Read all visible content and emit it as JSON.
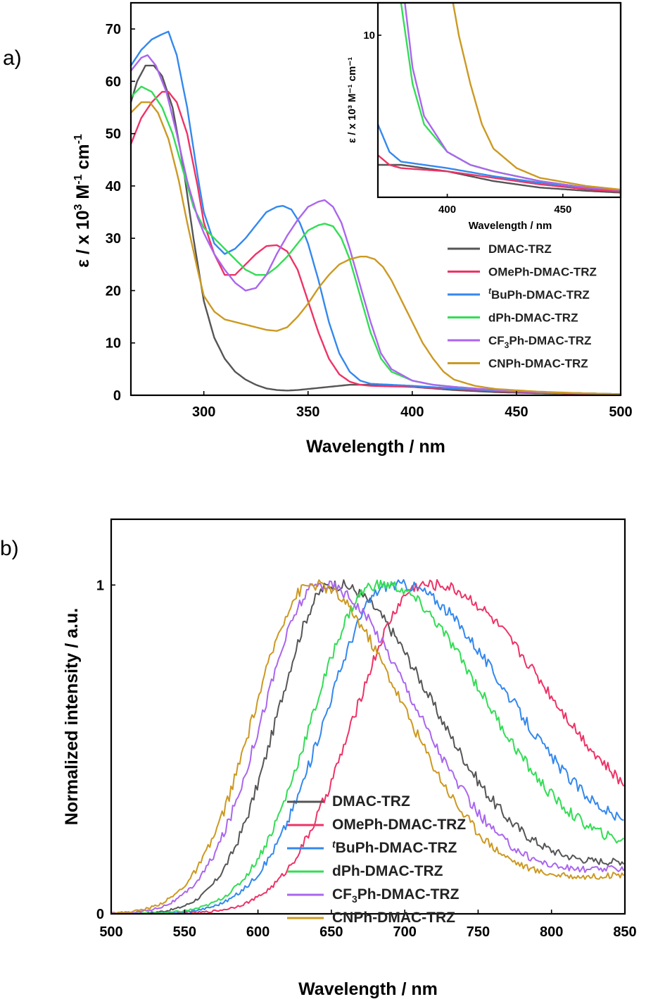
{
  "chart_data": [
    {
      "panel": "a)",
      "type": "line",
      "xlabel": "Wavelength / nm",
      "ylabel": "ε / x 10³ M⁻¹ cm⁻¹",
      "xlim": [
        265,
        500
      ],
      "ylim": [
        0,
        75
      ],
      "xticks": [
        300,
        350,
        400,
        450,
        500
      ],
      "yticks": [
        0,
        10,
        20,
        30,
        40,
        50,
        60,
        70
      ],
      "legend_position": "right",
      "series": [
        {
          "name": "DMAC-TRZ",
          "color": "#555555",
          "x": [
            265,
            268,
            272,
            276,
            280,
            285,
            290,
            295,
            300,
            305,
            310,
            315,
            320,
            325,
            330,
            335,
            340,
            345,
            350,
            360,
            370,
            380,
            390,
            400,
            410,
            420,
            440,
            460,
            480,
            500
          ],
          "y": [
            56,
            60,
            63,
            63,
            61,
            55,
            44,
            30,
            18,
            11,
            7,
            4.5,
            3,
            2,
            1.3,
            1,
            0.9,
            1,
            1.2,
            1.6,
            2,
            2,
            1.8,
            1.6,
            1.3,
            1,
            0.6,
            0.4,
            0.25,
            0.15
          ]
        },
        {
          "name": "OMePh-DMAC-TRZ",
          "color": "#ee3366",
          "x": [
            265,
            270,
            275,
            280,
            283,
            287,
            292,
            297,
            300,
            305,
            310,
            315,
            320,
            325,
            330,
            335,
            340,
            345,
            350,
            355,
            360,
            365,
            370,
            375,
            380,
            390,
            400,
            420,
            440,
            460,
            480,
            500
          ],
          "y": [
            48,
            53,
            56,
            58,
            58,
            56,
            50,
            40,
            33,
            27,
            23,
            23,
            25,
            27,
            28.5,
            28.7,
            27.5,
            24,
            18,
            12,
            7,
            4,
            2.6,
            2,
            1.8,
            1.7,
            1.6,
            1.2,
            0.8,
            0.5,
            0.3,
            0.2
          ]
        },
        {
          "name": "ᵗBuPh-DMAC-TRZ",
          "color": "#3388ee",
          "x": [
            265,
            270,
            275,
            280,
            283,
            287,
            292,
            297,
            300,
            305,
            310,
            315,
            320,
            325,
            330,
            335,
            338,
            342,
            346,
            350,
            355,
            360,
            365,
            370,
            375,
            380,
            390,
            400,
            420,
            440,
            460,
            480,
            500
          ],
          "y": [
            63,
            66,
            68,
            69,
            69.5,
            65,
            55,
            42,
            35,
            29,
            27,
            28,
            30,
            32.5,
            35,
            36,
            36.2,
            35.5,
            33,
            29,
            22,
            14,
            8,
            4.5,
            2.8,
            2.2,
            2,
            1.8,
            1.3,
            0.9,
            0.6,
            0.4,
            0.2
          ]
        },
        {
          "name": "dPh-DMAC-TRZ",
          "color": "#33dd55",
          "x": [
            265,
            270,
            275,
            280,
            285,
            290,
            295,
            300,
            305,
            310,
            315,
            320,
            325,
            330,
            335,
            340,
            345,
            350,
            355,
            358,
            362,
            366,
            370,
            375,
            380,
            385,
            390,
            400,
            410,
            420,
            440,
            460,
            480,
            500
          ],
          "y": [
            57,
            59,
            58,
            55,
            50,
            43,
            36,
            32,
            30,
            28,
            26,
            24,
            23,
            23,
            24.5,
            26.5,
            29,
            31.5,
            32.5,
            32.8,
            32.3,
            30,
            26,
            19,
            12,
            7,
            4.5,
            2.8,
            2,
            1.6,
            1,
            0.6,
            0.4,
            0.2
          ]
        },
        {
          "name": "CF₃Ph-DMAC-TRZ",
          "color": "#aa66ee",
          "x": [
            265,
            270,
            273,
            277,
            282,
            287,
            292,
            297,
            300,
            305,
            310,
            315,
            320,
            325,
            330,
            335,
            340,
            345,
            350,
            355,
            358,
            362,
            366,
            370,
            375,
            380,
            385,
            390,
            400,
            410,
            420,
            440,
            460,
            480,
            500
          ],
          "y": [
            62,
            64.5,
            65,
            63,
            58,
            50,
            41,
            34,
            31,
            27,
            24,
            21.5,
            20,
            20.5,
            23,
            27,
            30.5,
            33.5,
            36,
            37,
            37.3,
            36,
            33,
            28,
            21,
            14,
            8,
            5,
            2.8,
            2,
            1.6,
            1,
            0.6,
            0.4,
            0.2
          ]
        },
        {
          "name": "CNPh-DMAC-TRZ",
          "color": "#cc9922",
          "x": [
            265,
            270,
            274,
            278,
            283,
            288,
            292,
            297,
            300,
            305,
            310,
            320,
            330,
            335,
            340,
            345,
            350,
            355,
            360,
            365,
            370,
            375,
            378,
            382,
            386,
            390,
            395,
            400,
            405,
            410,
            415,
            420,
            430,
            440,
            460,
            480,
            500
          ],
          "y": [
            54,
            56,
            56,
            54,
            49,
            41,
            33,
            24,
            19,
            16,
            14.5,
            13.5,
            12.5,
            12.3,
            13,
            15,
            17.5,
            20.5,
            23,
            25,
            26,
            26.5,
            26.5,
            26,
            24.5,
            22,
            18,
            14,
            10,
            7,
            4.5,
            3,
            1.8,
            1.2,
            0.7,
            0.4,
            0.2
          ]
        }
      ],
      "inset": {
        "xlabel": "Wavelength / nm",
        "ylabel": "ε / x 10³ M⁻¹ cm⁻¹",
        "xlim": [
          370,
          475
        ],
        "ylim": [
          0,
          12
        ],
        "xticks": [
          400,
          450
        ],
        "yticks": [
          10
        ]
      }
    },
    {
      "panel": "b)",
      "type": "line",
      "xlabel": "Wavelength / nm",
      "ylabel": "Normalized intensity / a.u.",
      "xlim": [
        500,
        850
      ],
      "ylim": [
        0,
        1.2
      ],
      "xticks": [
        500,
        550,
        600,
        650,
        700,
        750,
        800,
        850
      ],
      "yticks": [
        0,
        1
      ],
      "legend_position": "bottom-center",
      "series": [
        {
          "name": "DMAC-TRZ",
          "color": "#555555",
          "peak": 650,
          "sigma_left": 52,
          "sigma_right": 95,
          "end": 0.16
        },
        {
          "name": "OMePh-DMAC-TRZ",
          "color": "#ee3366",
          "peak": 712,
          "sigma_left": 65,
          "sigma_right": 120,
          "end": 0.39
        },
        {
          "name": "ᵗBuPh-DMAC-TRZ",
          "color": "#3388ee",
          "peak": 690,
          "sigma_left": 62,
          "sigma_right": 110,
          "end": 0.28
        },
        {
          "name": "dPh-DMAC-TRZ",
          "color": "#33dd55",
          "peak": 680,
          "sigma_left": 60,
          "sigma_right": 102,
          "end": 0.22
        },
        {
          "name": "CF₃Ph-DMAC-TRZ",
          "color": "#aa66ee",
          "peak": 642,
          "sigma_left": 55,
          "sigma_right": 90,
          "end": 0.14
        },
        {
          "name": "CNPh-DMAC-TRZ",
          "color": "#cc9922",
          "peak": 636,
          "sigma_left": 55,
          "sigma_right": 88,
          "end": 0.12
        }
      ]
    }
  ],
  "labels": {
    "panel_a": "a)",
    "panel_b": "b)",
    "xlabel": "Wavelength / nm",
    "ylabel_a": "ε / x 10",
    "ylabel_a_sup1": "3",
    "ylabel_a_mid": " M",
    "ylabel_a_sup2": "-1",
    "ylabel_a_end": " cm",
    "ylabel_a_sup3": "-1",
    "ylabel_b": "Normalized intensity / a.u."
  },
  "legend": [
    {
      "pre": "",
      "sup": "",
      "sub": "",
      "post": "DMAC-TRZ"
    },
    {
      "pre": "",
      "sup": "",
      "sub": "",
      "post": "OMePh-DMAC-TRZ"
    },
    {
      "pre": "",
      "sup": "t",
      "sub": "",
      "post": "BuPh-DMAC-TRZ"
    },
    {
      "pre": "",
      "sup": "",
      "sub": "",
      "post": "dPh-DMAC-TRZ"
    },
    {
      "pre": "CF",
      "sup": "",
      "sub": "3",
      "post": "Ph-DMAC-TRZ"
    },
    {
      "pre": "",
      "sup": "",
      "sub": "",
      "post": "CNPh-DMAC-TRZ"
    }
  ]
}
